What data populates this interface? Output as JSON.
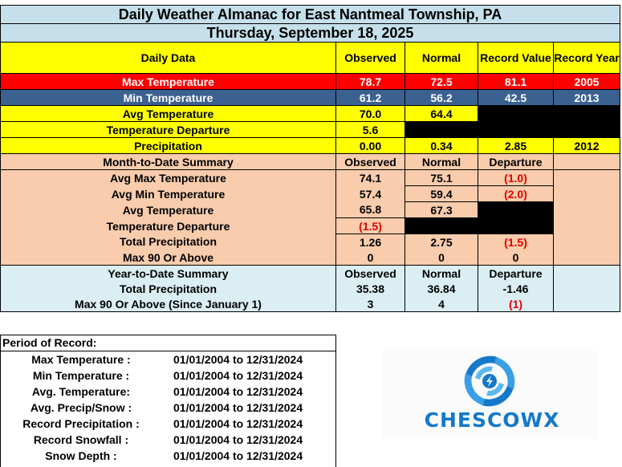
{
  "title": "Daily Weather Almanac for East Nantmeal Township, PA",
  "date": "Thursday, September 18, 2025",
  "header": {
    "daily_data": "Daily Data",
    "observed": "Observed",
    "normal": "Normal",
    "record_value": "Record Value",
    "record_year": "Record Year"
  },
  "daily": {
    "max": {
      "label": "Max Temperature",
      "observed": "78.7",
      "normal": "72.5",
      "record": "81.1",
      "year": "2005"
    },
    "min": {
      "label": "Min Temperature",
      "observed": "61.2",
      "normal": "56.2",
      "record": "42.5",
      "year": "2013"
    },
    "avg": {
      "label": "Avg Temperature",
      "observed": "70.0",
      "normal": "64.4"
    },
    "dep": {
      "label": "Temperature Departure",
      "observed": "5.6"
    },
    "precip": {
      "label": "Precipitation",
      "observed": "0.00",
      "normal": "0.34",
      "record": "2.85",
      "year": "2012"
    }
  },
  "mtd": {
    "header": {
      "label": "Month-to-Date Summary",
      "observed": "Observed",
      "normal": "Normal",
      "departure": "Departure"
    },
    "avg_max": {
      "label": "Avg Max Temperature",
      "observed": "74.1",
      "normal": "75.1",
      "departure": "(1.0)"
    },
    "avg_min": {
      "label": "Avg Min Temperature",
      "observed": "57.4",
      "normal": "59.4",
      "departure": "(2.0)"
    },
    "avg": {
      "label": "Avg Temperature",
      "observed": "65.8",
      "normal": "67.3"
    },
    "dep": {
      "label": "Temperature Departure",
      "observed": "(1.5)"
    },
    "precip": {
      "label": "Total Precipitation",
      "observed": "1.26",
      "normal": "2.75",
      "departure": "(1.5)"
    },
    "max90": {
      "label": "Max 90 Or Above",
      "observed": "0",
      "normal": "0",
      "departure": "0"
    }
  },
  "ytd": {
    "header": {
      "label": "Year-to-Date Summary",
      "observed": "Observed",
      "normal": "Normal",
      "departure": "Departure"
    },
    "precip": {
      "label": "Total Precipitation",
      "observed": "35.38",
      "normal": "36.84",
      "departure": "-1.46"
    },
    "max90": {
      "label": "Max 90 Or Above (Since January 1)",
      "observed": "3",
      "normal": "4",
      "departure": "(1)"
    }
  },
  "period": {
    "title": "Period of Record:",
    "rows": [
      {
        "label": "Max Temperature :",
        "value": "01/01/2004 to 12/31/2024"
      },
      {
        "label": "Min Temperature :",
        "value": "01/01/2004 to 12/31/2024"
      },
      {
        "label": "Avg. Temperature:",
        "value": "01/01/2004 to 12/31/2024"
      },
      {
        "label": "Avg. Precip/Snow :",
        "value": "01/01/2004 to 12/31/2024"
      },
      {
        "label": "Record Precipitation :",
        "value": "01/01/2004 to 12/31/2024"
      },
      {
        "label": "Record Snowfall :",
        "value": "01/01/2004 to 12/31/2024"
      },
      {
        "label": "Snow Depth :",
        "value": "01/01/2004 to 12/31/2024"
      }
    ]
  },
  "logo": {
    "text": "CHESCOWX",
    "color": "#1479c9"
  },
  "colors": {
    "title_bg": "#c5e0ea",
    "yellow": "#ffff00",
    "red": "#ff0000",
    "blue": "#3b6190",
    "peach": "#f8ccac",
    "light_blue": "#dbeef3",
    "negative": "#e00000"
  }
}
